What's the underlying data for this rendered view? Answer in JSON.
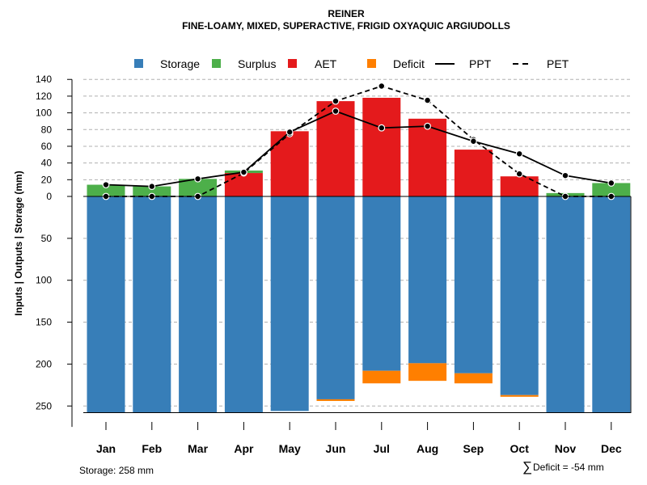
{
  "chart_data": {
    "type": "bar",
    "title": "REINER",
    "subtitle": "FINE-LOAMY, MIXED, SUPERACTIVE, FRIGID OXYAQUIC ARGIUDOLLS",
    "ylabel": "Inputs | Outputs | Storage     (mm)",
    "categories": [
      "Jan",
      "Feb",
      "Mar",
      "Apr",
      "May",
      "Jun",
      "Jul",
      "Aug",
      "Sep",
      "Oct",
      "Nov",
      "Dec"
    ],
    "upper_ticks": [
      0,
      20,
      40,
      60,
      80,
      100,
      120,
      140
    ],
    "upper_tick_labels": [
      "0",
      "20",
      "40",
      "60",
      "80",
      "100",
      "120",
      "140"
    ],
    "lower_ticks": [
      50,
      100,
      150,
      200,
      250
    ],
    "lower_tick_labels": [
      "50",
      "100",
      "150",
      "200",
      "250"
    ],
    "ylim_upper": [
      0,
      140
    ],
    "ylim_lower": [
      0,
      258
    ],
    "legend": [
      {
        "key": "storage",
        "label": "Storage",
        "kind": "square",
        "color": "#377eb8"
      },
      {
        "key": "surplus",
        "label": "Surplus",
        "kind": "square",
        "color": "#4daf4a"
      },
      {
        "key": "aet",
        "label": "AET",
        "kind": "square",
        "color": "#e41a1c"
      },
      {
        "key": "deficit",
        "label": "Deficit",
        "kind": "square",
        "color": "#ff7f00"
      },
      {
        "key": "ppt",
        "label": "PPT",
        "kind": "solid",
        "color": "#000000"
      },
      {
        "key": "pet",
        "label": "PET",
        "kind": "dashed",
        "color": "#000000"
      }
    ],
    "series": [
      {
        "name": "Surplus",
        "color": "#4daf4a",
        "values": [
          14,
          12,
          21,
          3,
          0,
          0,
          0,
          0,
          0,
          0,
          4,
          16
        ]
      },
      {
        "name": "AET",
        "color": "#e41a1c",
        "values": [
          0,
          0,
          0,
          28,
          78,
          114,
          118,
          93,
          56,
          24,
          0,
          0
        ]
      },
      {
        "name": "Storage",
        "color": "#377eb8",
        "values": [
          258,
          258,
          258,
          258,
          256,
          242,
          208,
          199,
          211,
          237,
          258,
          258
        ]
      },
      {
        "name": "Deficit",
        "color": "#ff7f00",
        "values": [
          0,
          0,
          0,
          0,
          0,
          2,
          15,
          21,
          12,
          2,
          0,
          0
        ]
      },
      {
        "name": "PPT",
        "color": "#000000",
        "values": [
          14,
          12,
          21,
          29,
          77,
          102,
          82,
          84,
          66,
          51,
          25,
          16
        ]
      },
      {
        "name": "PET",
        "color": "#000000",
        "values": [
          0,
          0,
          0,
          28,
          75,
          114,
          132,
          115,
          68,
          27,
          0,
          0
        ]
      }
    ]
  },
  "footer": {
    "storage_label": "Storage: 258 mm",
    "deficit_symbol": "∑",
    "deficit_label": "Deficit = -54 mm"
  }
}
